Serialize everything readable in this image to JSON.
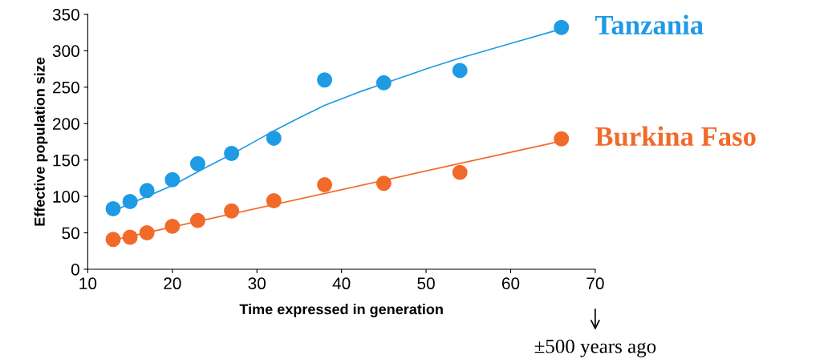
{
  "chart_data": {
    "type": "scatter",
    "xlabel": "Time expressed in generation",
    "ylabel": "Effective population size",
    "xlim": [
      10,
      70
    ],
    "xticks": [
      10,
      20,
      30,
      40,
      50,
      60,
      70
    ],
    "ylim": [
      0,
      350
    ],
    "yticks": [
      0,
      50,
      100,
      150,
      200,
      250,
      300,
      350
    ],
    "grid": false,
    "legend": false,
    "marker": "circle",
    "series": [
      {
        "name": "Tanzania",
        "color": "#1f9ae5",
        "x": [
          13,
          15,
          17,
          20,
          23,
          27,
          32,
          38,
          45,
          54,
          66
        ],
        "values": [
          83,
          93,
          108,
          123,
          145,
          159,
          180,
          260,
          256,
          273,
          332
        ]
      },
      {
        "name": "Burkina Faso",
        "color": "#f26a2a",
        "x": [
          13,
          15,
          17,
          20,
          23,
          27,
          32,
          38,
          45,
          54,
          66
        ],
        "values": [
          41,
          44,
          50,
          59,
          67,
          80,
          94,
          116,
          118,
          133,
          179
        ]
      },
      {
        "type": "line",
        "marker": "none",
        "color": "#1f9ae5",
        "x": [
          13,
          17,
          20,
          24,
          27,
          30,
          32,
          35,
          38,
          42,
          45,
          50,
          54,
          60,
          66
        ],
        "values": [
          80,
          100,
          115,
          140,
          158,
          177,
          190,
          208,
          225,
          243,
          255,
          275,
          290,
          310,
          330
        ]
      },
      {
        "type": "line",
        "marker": "none",
        "color": "#f26a2a",
        "x": [
          13,
          66
        ],
        "values": [
          40,
          176
        ]
      }
    ],
    "annotations": [
      "±500 years ago"
    ]
  }
}
